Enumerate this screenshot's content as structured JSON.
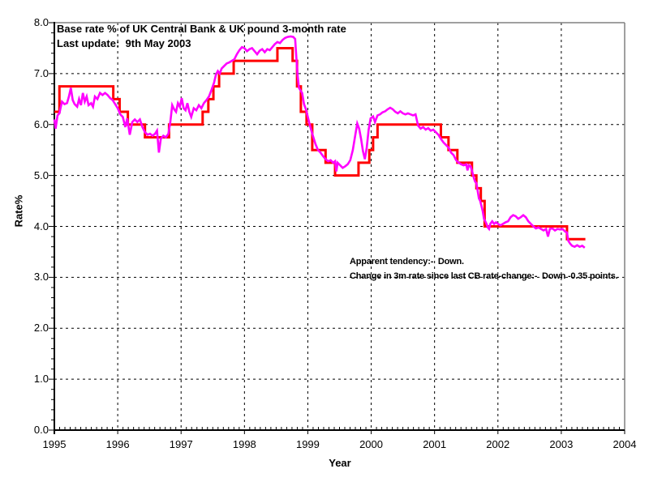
{
  "chart_data": {
    "type": "line",
    "title": "Base rate % of UK Central Bank & UK pound 3-month rate",
    "subtitle": "Last update:  9th May 2003",
    "xlabel": "Year",
    "ylabel": "Rate%",
    "xlim": [
      1995,
      2004
    ],
    "ylim": [
      0,
      8
    ],
    "grid": "dashed",
    "grid_color": "#000000",
    "frame_color": "#808080",
    "background": "#ffffff",
    "x_ticks": [
      [
        1995,
        "1995"
      ],
      [
        1996,
        "1996"
      ],
      [
        1997,
        "1997"
      ],
      [
        1998,
        "1998"
      ],
      [
        1999,
        "1999"
      ],
      [
        2000,
        "2000"
      ],
      [
        2001,
        "2001"
      ],
      [
        2002,
        "2002"
      ],
      [
        2003,
        "2003"
      ],
      [
        2004,
        "2004"
      ]
    ],
    "y_ticks": [
      [
        0,
        "0.0"
      ],
      [
        1,
        "1.0"
      ],
      [
        2,
        "2.0"
      ],
      [
        3,
        "3.0"
      ],
      [
        4,
        "4.0"
      ],
      [
        5,
        "5.0"
      ],
      [
        6,
        "6.0"
      ],
      [
        7,
        "7.0"
      ],
      [
        8,
        "8.0"
      ]
    ],
    "x_minor_step": 0.08333,
    "y_minor_step": 0.2,
    "annotations": [
      {
        "text": "Apparent tendency:-  Down.",
        "x": 1999.66,
        "y": 3.35
      },
      {
        "text": "Change in 3m rate since last CB rate-change:-  Down -0.35 points.",
        "x": 1999.66,
        "y": 3.06
      }
    ],
    "series": [
      {
        "name": "UK Central Bank base rate",
        "color": "#ff0000",
        "mode": "step",
        "width": 3,
        "end_x": 2003.38,
        "points": [
          [
            1995.0,
            6.25
          ],
          [
            1995.08,
            6.75
          ],
          [
            1995.93,
            6.5
          ],
          [
            1996.03,
            6.25
          ],
          [
            1996.16,
            6.0
          ],
          [
            1996.43,
            5.75
          ],
          [
            1996.81,
            6.0
          ],
          [
            1997.34,
            6.25
          ],
          [
            1997.43,
            6.5
          ],
          [
            1997.51,
            6.75
          ],
          [
            1997.6,
            7.0
          ],
          [
            1997.83,
            7.25
          ],
          [
            1998.52,
            7.5
          ],
          [
            1998.76,
            7.25
          ],
          [
            1998.83,
            6.75
          ],
          [
            1998.89,
            6.25
          ],
          [
            1998.98,
            6.0
          ],
          [
            1999.07,
            5.5
          ],
          [
            1999.28,
            5.25
          ],
          [
            1999.43,
            5.0
          ],
          [
            1999.8,
            5.25
          ],
          [
            1999.97,
            5.5
          ],
          [
            2000.03,
            5.75
          ],
          [
            2000.1,
            6.0
          ],
          [
            2001.1,
            5.75
          ],
          [
            2001.22,
            5.5
          ],
          [
            2001.36,
            5.25
          ],
          [
            2001.59,
            5.0
          ],
          [
            2001.66,
            4.75
          ],
          [
            2001.73,
            4.5
          ],
          [
            2001.79,
            4.0
          ],
          [
            2003.09,
            3.75
          ]
        ]
      },
      {
        "name": "UK pound 3-month rate",
        "color": "#ff00ff",
        "mode": "line",
        "width": 2.6,
        "points": [
          [
            1995.0,
            6.1
          ],
          [
            1995.02,
            5.92
          ],
          [
            1995.05,
            6.18
          ],
          [
            1995.08,
            6.22
          ],
          [
            1995.12,
            6.45
          ],
          [
            1995.16,
            6.4
          ],
          [
            1995.2,
            6.42
          ],
          [
            1995.23,
            6.55
          ],
          [
            1995.26,
            6.72
          ],
          [
            1995.29,
            6.48
          ],
          [
            1995.32,
            6.4
          ],
          [
            1995.36,
            6.35
          ],
          [
            1995.39,
            6.5
          ],
          [
            1995.42,
            6.38
          ],
          [
            1995.45,
            6.62
          ],
          [
            1995.48,
            6.45
          ],
          [
            1995.51,
            6.55
          ],
          [
            1995.54,
            6.38
          ],
          [
            1995.58,
            6.42
          ],
          [
            1995.61,
            6.35
          ],
          [
            1995.64,
            6.55
          ],
          [
            1995.68,
            6.5
          ],
          [
            1995.72,
            6.62
          ],
          [
            1995.76,
            6.58
          ],
          [
            1995.8,
            6.62
          ],
          [
            1995.84,
            6.58
          ],
          [
            1995.88,
            6.52
          ],
          [
            1995.92,
            6.48
          ],
          [
            1995.96,
            6.4
          ],
          [
            1996.0,
            6.32
          ],
          [
            1996.04,
            6.2
          ],
          [
            1996.08,
            6.15
          ],
          [
            1996.12,
            5.95
          ],
          [
            1996.15,
            6.12
          ],
          [
            1996.19,
            5.8
          ],
          [
            1996.23,
            6.05
          ],
          [
            1996.27,
            6.1
          ],
          [
            1996.31,
            6.05
          ],
          [
            1996.35,
            6.1
          ],
          [
            1996.39,
            5.95
          ],
          [
            1996.43,
            5.85
          ],
          [
            1996.47,
            5.8
          ],
          [
            1996.51,
            5.82
          ],
          [
            1996.55,
            5.78
          ],
          [
            1996.59,
            5.82
          ],
          [
            1996.62,
            5.88
          ],
          [
            1996.65,
            5.45
          ],
          [
            1996.68,
            5.72
          ],
          [
            1996.72,
            5.78
          ],
          [
            1996.76,
            5.75
          ],
          [
            1996.8,
            5.82
          ],
          [
            1996.83,
            6.05
          ],
          [
            1996.86,
            6.38
          ],
          [
            1996.89,
            6.3
          ],
          [
            1996.92,
            6.25
          ],
          [
            1996.95,
            6.42
          ],
          [
            1996.98,
            6.35
          ],
          [
            1997.01,
            6.52
          ],
          [
            1997.04,
            6.32
          ],
          [
            1997.07,
            6.28
          ],
          [
            1997.1,
            6.42
          ],
          [
            1997.13,
            6.25
          ],
          [
            1997.16,
            6.15
          ],
          [
            1997.2,
            6.32
          ],
          [
            1997.24,
            6.28
          ],
          [
            1997.28,
            6.38
          ],
          [
            1997.32,
            6.32
          ],
          [
            1997.36,
            6.42
          ],
          [
            1997.4,
            6.48
          ],
          [
            1997.44,
            6.55
          ],
          [
            1997.48,
            6.68
          ],
          [
            1997.52,
            6.82
          ],
          [
            1997.55,
            6.98
          ],
          [
            1997.58,
            7.05
          ],
          [
            1997.61,
            7.0
          ],
          [
            1997.64,
            7.1
          ],
          [
            1997.68,
            7.15
          ],
          [
            1997.72,
            7.2
          ],
          [
            1997.76,
            7.22
          ],
          [
            1997.8,
            7.25
          ],
          [
            1997.84,
            7.28
          ],
          [
            1997.88,
            7.38
          ],
          [
            1997.92,
            7.46
          ],
          [
            1997.96,
            7.52
          ],
          [
            1998.0,
            7.5
          ],
          [
            1998.04,
            7.44
          ],
          [
            1998.08,
            7.48
          ],
          [
            1998.12,
            7.5
          ],
          [
            1998.16,
            7.44
          ],
          [
            1998.2,
            7.38
          ],
          [
            1998.24,
            7.45
          ],
          [
            1998.28,
            7.48
          ],
          [
            1998.32,
            7.42
          ],
          [
            1998.36,
            7.48
          ],
          [
            1998.4,
            7.46
          ],
          [
            1998.44,
            7.52
          ],
          [
            1998.48,
            7.58
          ],
          [
            1998.52,
            7.62
          ],
          [
            1998.56,
            7.6
          ],
          [
            1998.6,
            7.66
          ],
          [
            1998.64,
            7.7
          ],
          [
            1998.68,
            7.72
          ],
          [
            1998.73,
            7.73
          ],
          [
            1998.77,
            7.72
          ],
          [
            1998.8,
            7.68
          ],
          [
            1998.82,
            7.3
          ],
          [
            1998.84,
            6.95
          ],
          [
            1998.86,
            6.72
          ],
          [
            1998.89,
            6.66
          ],
          [
            1998.91,
            6.62
          ],
          [
            1998.94,
            6.4
          ],
          [
            1998.97,
            6.3
          ],
          [
            1999.0,
            6.15
          ],
          [
            1999.04,
            5.95
          ],
          [
            1999.08,
            5.78
          ],
          [
            1999.12,
            5.62
          ],
          [
            1999.16,
            5.5
          ],
          [
            1999.2,
            5.45
          ],
          [
            1999.24,
            5.38
          ],
          [
            1999.28,
            5.32
          ],
          [
            1999.32,
            5.28
          ],
          [
            1999.36,
            5.3
          ],
          [
            1999.4,
            5.25
          ],
          [
            1999.43,
            5.28
          ],
          [
            1999.45,
            5.08
          ],
          [
            1999.47,
            5.25
          ],
          [
            1999.51,
            5.2
          ],
          [
            1999.55,
            5.15
          ],
          [
            1999.59,
            5.18
          ],
          [
            1999.63,
            5.22
          ],
          [
            1999.67,
            5.3
          ],
          [
            1999.71,
            5.5
          ],
          [
            1999.75,
            5.8
          ],
          [
            1999.78,
            6.02
          ],
          [
            1999.81,
            5.92
          ],
          [
            1999.84,
            5.72
          ],
          [
            1999.87,
            5.48
          ],
          [
            1999.9,
            5.32
          ],
          [
            1999.93,
            5.55
          ],
          [
            1999.96,
            5.9
          ],
          [
            1999.99,
            6.12
          ],
          [
            2000.03,
            6.16
          ],
          [
            2000.06,
            6.05
          ],
          [
            2000.1,
            6.18
          ],
          [
            2000.14,
            6.2
          ],
          [
            2000.18,
            6.24
          ],
          [
            2000.22,
            6.26
          ],
          [
            2000.26,
            6.3
          ],
          [
            2000.3,
            6.33
          ],
          [
            2000.34,
            6.3
          ],
          [
            2000.38,
            6.25
          ],
          [
            2000.42,
            6.22
          ],
          [
            2000.46,
            6.26
          ],
          [
            2000.5,
            6.22
          ],
          [
            2000.54,
            6.2
          ],
          [
            2000.58,
            6.22
          ],
          [
            2000.62,
            6.2
          ],
          [
            2000.66,
            6.18
          ],
          [
            2000.7,
            6.2
          ],
          [
            2000.74,
            5.98
          ],
          [
            2000.78,
            5.92
          ],
          [
            2000.82,
            5.95
          ],
          [
            2000.86,
            5.9
          ],
          [
            2000.9,
            5.93
          ],
          [
            2000.94,
            5.88
          ],
          [
            2000.98,
            5.9
          ],
          [
            2001.02,
            5.85
          ],
          [
            2001.06,
            5.8
          ],
          [
            2001.1,
            5.72
          ],
          [
            2001.14,
            5.65
          ],
          [
            2001.18,
            5.6
          ],
          [
            2001.22,
            5.55
          ],
          [
            2001.26,
            5.45
          ],
          [
            2001.3,
            5.4
          ],
          [
            2001.34,
            5.3
          ],
          [
            2001.38,
            5.25
          ],
          [
            2001.42,
            5.22
          ],
          [
            2001.46,
            5.2
          ],
          [
            2001.5,
            5.22
          ],
          [
            2001.52,
            5.1
          ],
          [
            2001.54,
            5.2
          ],
          [
            2001.57,
            5.18
          ],
          [
            2001.6,
            5.05
          ],
          [
            2001.62,
            4.95
          ],
          [
            2001.64,
            4.88
          ],
          [
            2001.66,
            4.85
          ],
          [
            2001.68,
            4.7
          ],
          [
            2001.7,
            4.55
          ],
          [
            2001.72,
            4.5
          ],
          [
            2001.74,
            4.4
          ],
          [
            2001.76,
            4.3
          ],
          [
            2001.78,
            4.15
          ],
          [
            2001.8,
            4.1
          ],
          [
            2001.82,
            4.05
          ],
          [
            2001.84,
            3.98
          ],
          [
            2001.86,
            3.95
          ],
          [
            2001.88,
            4.05
          ],
          [
            2001.91,
            4.1
          ],
          [
            2001.94,
            4.05
          ],
          [
            2001.97,
            4.08
          ],
          [
            2002.0,
            4.05
          ],
          [
            2002.04,
            4.02
          ],
          [
            2002.08,
            4.05
          ],
          [
            2002.12,
            4.08
          ],
          [
            2002.16,
            4.1
          ],
          [
            2002.2,
            4.18
          ],
          [
            2002.24,
            4.22
          ],
          [
            2002.28,
            4.2
          ],
          [
            2002.32,
            4.15
          ],
          [
            2002.36,
            4.18
          ],
          [
            2002.4,
            4.22
          ],
          [
            2002.44,
            4.18
          ],
          [
            2002.48,
            4.1
          ],
          [
            2002.52,
            4.05
          ],
          [
            2002.56,
            4.0
          ],
          [
            2002.6,
            3.96
          ],
          [
            2002.64,
            3.98
          ],
          [
            2002.68,
            3.95
          ],
          [
            2002.72,
            3.92
          ],
          [
            2002.76,
            3.95
          ],
          [
            2002.79,
            3.8
          ],
          [
            2002.82,
            3.95
          ],
          [
            2002.86,
            3.96
          ],
          [
            2002.9,
            3.92
          ],
          [
            2002.94,
            3.95
          ],
          [
            2002.98,
            3.94
          ],
          [
            2003.02,
            3.95
          ],
          [
            2003.06,
            3.9
          ],
          [
            2003.09,
            3.88
          ],
          [
            2003.11,
            3.72
          ],
          [
            2003.14,
            3.66
          ],
          [
            2003.17,
            3.62
          ],
          [
            2003.21,
            3.6
          ],
          [
            2003.25,
            3.63
          ],
          [
            2003.29,
            3.6
          ],
          [
            2003.33,
            3.62
          ],
          [
            2003.37,
            3.58
          ]
        ]
      }
    ]
  }
}
